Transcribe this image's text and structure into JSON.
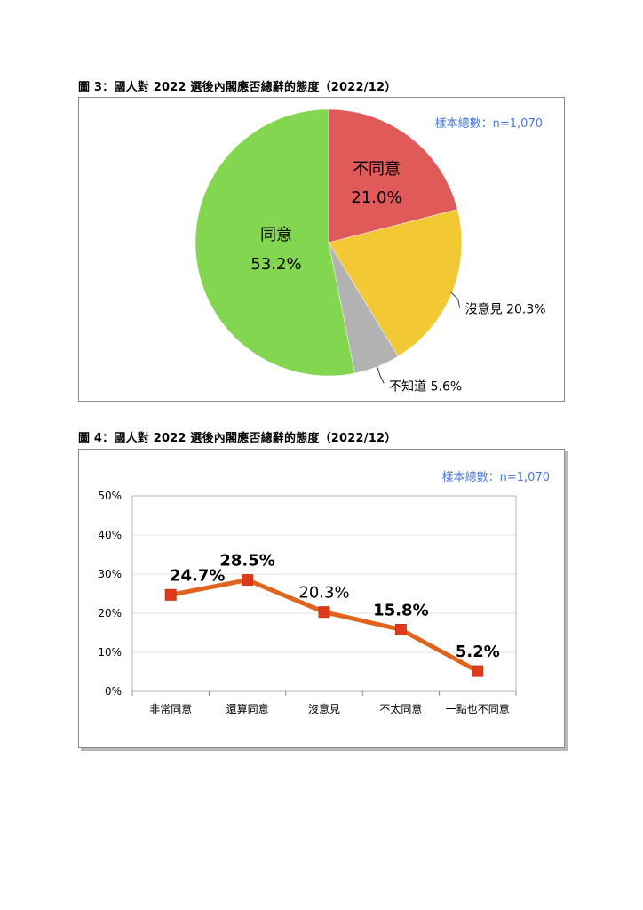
{
  "figure3": {
    "title": "圖 3：國人對 2022 選後內閣應否總辭的態度（2022/12）",
    "sample_note": "樣本總數：n=1,070"
  },
  "figure4": {
    "title": "圖 4：國人對 2022 選後內閣應否總辭的態度（2022/12）",
    "sample_note": "樣本總數：n=1,070"
  },
  "chart_data": [
    {
      "type": "pie",
      "title": "圖 3：國人對 2022 選後內閣應否總辭的態度（2022/12）",
      "slices": [
        {
          "label": "不同意",
          "value": 21.0,
          "value_label": "21.0%",
          "color": "#e05a5a"
        },
        {
          "label": "沒意見",
          "value": 20.3,
          "value_label": "20.3%",
          "color": "#f2c935"
        },
        {
          "label": "不知道",
          "value": 5.6,
          "value_label": "5.6%",
          "color": "#b2b2b2"
        },
        {
          "label": "同意",
          "value": 53.2,
          "value_label": "53.2%",
          "color": "#83d650"
        }
      ],
      "slice_labels": {
        "disagree": {
          "name": "不同意",
          "value": "21.0%"
        },
        "agree": {
          "name": "同意",
          "value": "53.2%"
        },
        "no_opinion": "沒意見 20.3%",
        "dont_know": "不知道 5.6%"
      }
    },
    {
      "type": "line",
      "title": "圖 4：國人對 2022 選後內閣應否總辭的態度（2022/12）",
      "categories": [
        "非常同意",
        "還算同意",
        "沒意見",
        "不太同意",
        "一點也不同意"
      ],
      "values": [
        24.7,
        28.5,
        20.3,
        15.8,
        5.2
      ],
      "value_labels": [
        "24.7%",
        "28.5%",
        "20.3%",
        "15.8%",
        "5.2%"
      ],
      "bold_labels": [
        true,
        true,
        false,
        true,
        true
      ],
      "y_ticks": [
        "0%",
        "10%",
        "20%",
        "30%",
        "40%",
        "50%"
      ],
      "ylim": [
        0,
        50
      ],
      "grid": true,
      "line_color": "#e0641e",
      "marker_color": "#e03a1a"
    }
  ]
}
